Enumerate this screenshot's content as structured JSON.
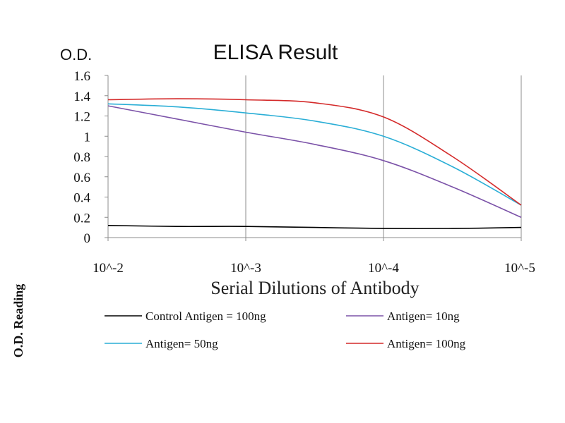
{
  "chart_data": {
    "type": "line",
    "title": "ELISA Result",
    "ylabel": "O.D.",
    "side_label": "O.D. Reading",
    "xlabel": "Serial Dilutions of Antibody",
    "x_tick_labels": [
      "10^-2",
      "10^-3",
      "10^-4",
      "10^-5"
    ],
    "x_exponents": [
      2,
      3,
      4,
      5
    ],
    "ylim": [
      0,
      1.6
    ],
    "y_ticks": [
      0,
      0.2,
      0.4,
      0.6,
      0.8,
      1,
      1.2,
      1.4,
      1.6
    ],
    "y_tick_labels": [
      "0",
      "0.2",
      "0.4",
      "0.6",
      "0.8",
      "1",
      "1.2",
      "1.4",
      "1.6"
    ],
    "grid": {
      "vertical": true,
      "horizontal": false
    },
    "legend_position": "bottom",
    "series": [
      {
        "name": "Control Antigen = 100ng",
        "color": "#000000",
        "x": [
          2,
          2.5,
          3,
          3.5,
          4,
          4.5,
          5
        ],
        "y": [
          0.12,
          0.11,
          0.11,
          0.1,
          0.09,
          0.09,
          0.1
        ]
      },
      {
        "name": "Antigen= 10ng",
        "color": "#7b52a8",
        "x": [
          2,
          2.5,
          3,
          3.5,
          4,
          4.5,
          5
        ],
        "y": [
          1.3,
          1.17,
          1.04,
          0.92,
          0.76,
          0.5,
          0.2
        ]
      },
      {
        "name": "Antigen= 50ng",
        "color": "#2aaed6",
        "x": [
          2,
          2.5,
          3,
          3.5,
          4,
          4.5,
          5
        ],
        "y": [
          1.32,
          1.29,
          1.23,
          1.15,
          1.0,
          0.7,
          0.32
        ]
      },
      {
        "name": "Antigen= 100ng",
        "color": "#d42a2a",
        "x": [
          2,
          2.5,
          3,
          3.5,
          4,
          4.5,
          5
        ],
        "y": [
          1.36,
          1.37,
          1.36,
          1.33,
          1.19,
          0.8,
          0.32
        ]
      }
    ]
  }
}
